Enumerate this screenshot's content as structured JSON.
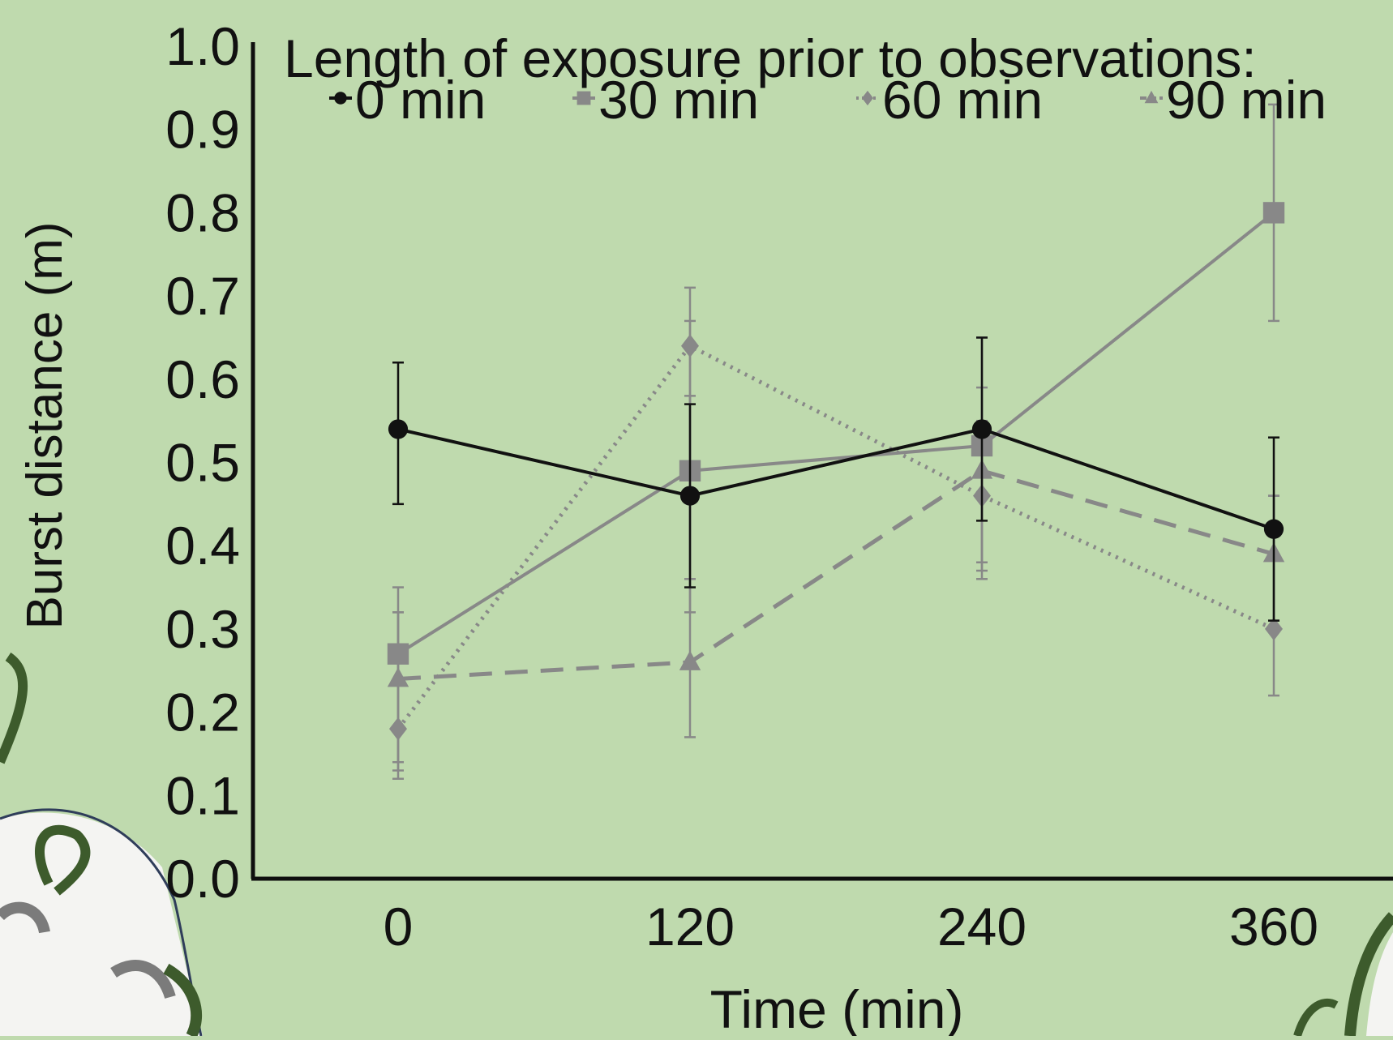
{
  "colors": {
    "background": "#bfdaae",
    "axis": "#0f0f0f",
    "ink": "#111111",
    "series_black": "#111111",
    "series_gray": "#888888",
    "leaf_dark": "#3d5b2c",
    "leaf_light": "#f4f4f2"
  },
  "chart_data": {
    "type": "line",
    "title": "",
    "legend": {
      "title": "Length of exposure prior to observations:",
      "placement": "top"
    },
    "xlabel": "Time (min)",
    "ylabel": "Burst distance (m)",
    "x": [
      0,
      120,
      240,
      360
    ],
    "x_tick_labels": [
      "0",
      "120",
      "240",
      "360"
    ],
    "y_tick_labels": [
      "0.0",
      "0.1",
      "0.2",
      "0.3",
      "0.4",
      "0.5",
      "0.6",
      "0.7",
      "0.8",
      "0.9",
      "1.0"
    ],
    "ylim": [
      0,
      1
    ],
    "grid": false,
    "series": [
      {
        "name": "0 min",
        "marker": "circle",
        "line_style": "solid",
        "color": "#111111",
        "values": [
          0.54,
          0.46,
          0.54,
          0.42
        ],
        "error": [
          [
            0.45,
            0.62
          ],
          [
            0.35,
            0.57
          ],
          [
            0.43,
            0.65
          ],
          [
            0.31,
            0.53
          ]
        ]
      },
      {
        "name": "30 min",
        "marker": "square",
        "line_style": "solid",
        "color": "#888888",
        "values": [
          0.27,
          0.49,
          0.52,
          0.8
        ],
        "error": [
          [
            0.13,
            0.35
          ],
          [
            0.36,
            0.67
          ],
          [
            0.38,
            0.65
          ],
          [
            0.67,
            0.93
          ]
        ]
      },
      {
        "name": "60 min",
        "marker": "diamond",
        "line_style": "dotted",
        "color": "#888888",
        "values": [
          0.18,
          0.64,
          0.46,
          0.3
        ],
        "error": [
          [
            0.12,
            0.32
          ],
          [
            0.32,
            0.71
          ],
          [
            0.36,
            0.55
          ],
          [
            0.22,
            0.46
          ]
        ]
      },
      {
        "name": "90 min",
        "marker": "triangle",
        "line_style": "dashed",
        "color": "#888888",
        "values": [
          0.24,
          0.26,
          0.49,
          0.39
        ],
        "error": [
          [
            0.14,
            0.32
          ],
          [
            0.17,
            0.58
          ],
          [
            0.37,
            0.59
          ],
          [
            0.31,
            0.46
          ]
        ]
      }
    ]
  }
}
